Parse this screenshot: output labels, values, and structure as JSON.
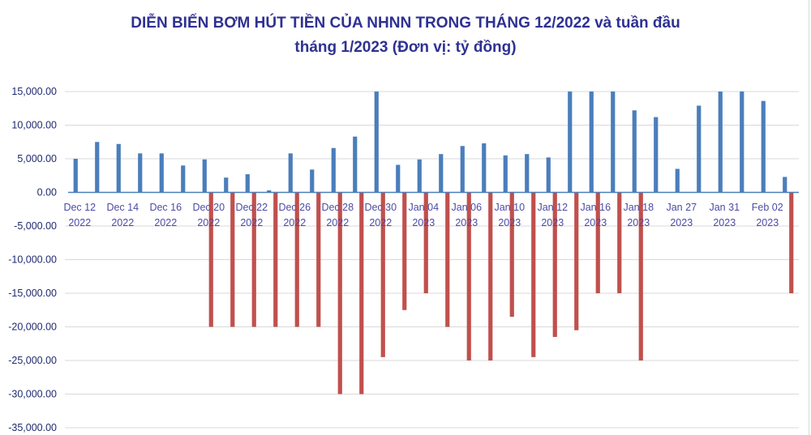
{
  "chart_data": {
    "type": "bar",
    "title_line1": "DIỄN BIẾN BƠM HÚT TIỀN CỦA NHNN TRONG THÁNG 12/2022 và tuần đầu",
    "title_line2": "tháng 1/2023 (Đơn vị: tỷ đồng)",
    "xlabel": "",
    "ylabel": "",
    "ylim": [
      -35000,
      15000
    ],
    "yticks": [
      "15,000.00",
      "10,000.00",
      "5,000.00",
      "0.00",
      "-5,000.00",
      "-10,000.00",
      "-15,000.00",
      "-20,000.00",
      "-25,000.00",
      "-30,000.00",
      "-35,000.00"
    ],
    "ytick_values": [
      15000,
      10000,
      5000,
      0,
      -5000,
      -10000,
      -15000,
      -20000,
      -25000,
      -30000,
      -35000
    ],
    "grid": true,
    "legend": "none",
    "categories": [
      [
        "Dec 12",
        "2022"
      ],
      [
        "",
        ""
      ],
      [
        "Dec 14",
        "2022"
      ],
      [
        "",
        ""
      ],
      [
        "Dec 16",
        "2022"
      ],
      [
        "",
        ""
      ],
      [
        "Dec 20",
        "2022"
      ],
      [
        "",
        ""
      ],
      [
        "Dec 22",
        "2022"
      ],
      [
        "",
        ""
      ],
      [
        "Dec 26",
        "2022"
      ],
      [
        "",
        ""
      ],
      [
        "Dec 28",
        "2022"
      ],
      [
        "",
        ""
      ],
      [
        "Dec 30",
        "2022"
      ],
      [
        "",
        ""
      ],
      [
        "Jan 04",
        "2023"
      ],
      [
        "",
        ""
      ],
      [
        "Jan 06",
        "2023"
      ],
      [
        "",
        ""
      ],
      [
        "Jan 10",
        "2023"
      ],
      [
        "",
        ""
      ],
      [
        "Jan 12",
        "2023"
      ],
      [
        "",
        ""
      ],
      [
        "Jan 16",
        "2023"
      ],
      [
        "",
        ""
      ],
      [
        "Jan 18",
        "2023"
      ],
      [
        "",
        ""
      ],
      [
        "Jan 27",
        "2023"
      ],
      [
        "",
        ""
      ],
      [
        "Jan 31",
        "2023"
      ],
      [
        "",
        ""
      ],
      [
        "Feb 02",
        "2023"
      ],
      [
        "",
        ""
      ]
    ],
    "series": [
      {
        "color": "#4a7ebb",
        "values": [
          5000,
          7500,
          7200,
          5800,
          5800,
          4000,
          4900,
          2200,
          2700,
          300,
          5800,
          3400,
          6600,
          8300,
          15000,
          4100,
          4900,
          5700,
          6900,
          7300,
          5500,
          5700,
          5200,
          15000,
          15000,
          15000,
          12200,
          11200,
          3500,
          12900,
          15000,
          15000,
          13600,
          2300
        ]
      },
      {
        "color": "#c0504d",
        "values": [
          0,
          0,
          0,
          0,
          0,
          0,
          -20000,
          -20000,
          -20000,
          -20000,
          -20000,
          -20000,
          -30000,
          -30000,
          -24500,
          -17500,
          -15000,
          -20000,
          -25000,
          -25000,
          -18500,
          -24500,
          -21500,
          -20500,
          -15000,
          -15000,
          -25000,
          0,
          0,
          0,
          0,
          0,
          0,
          -15000
        ]
      }
    ]
  }
}
